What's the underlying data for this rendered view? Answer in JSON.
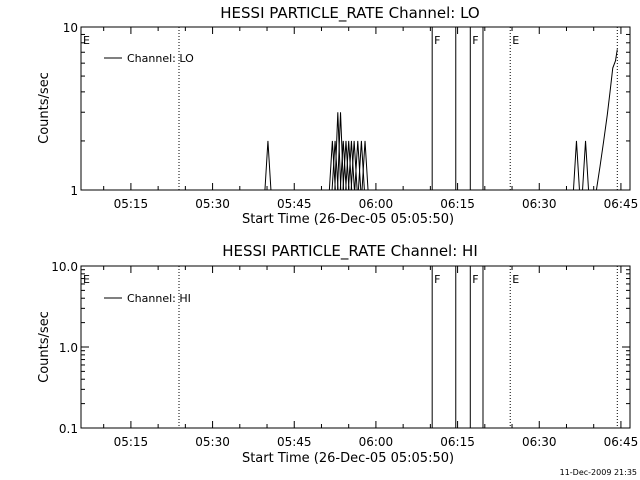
{
  "footer_timestamp": "11-Dec-2009 21:35",
  "chart_data": [
    {
      "type": "line",
      "title": "HESSI PARTICLE_RATE Channel: LO",
      "xlabel": "Start Time (26-Dec-05 05:05:50)",
      "ylabel": "Counts/sec",
      "yscale": "log",
      "xlim": [
        "05:05:50",
        "06:46:40"
      ],
      "ylim": [
        1,
        10
      ],
      "x_ticks": [
        "05:15",
        "05:30",
        "05:45",
        "06:00",
        "06:15",
        "06:30",
        "06:45"
      ],
      "y_ticks": [
        "1",
        "10"
      ],
      "legend": "top-left",
      "series": [
        {
          "name": "Channel: LO",
          "points": [
            [
              "06:40:30",
              1
            ],
            [
              "06:41:10",
              1.4
            ],
            [
              "06:41:50",
              2.0
            ],
            [
              "06:42:30",
              2.9
            ],
            [
              "06:43:00",
              4.0
            ],
            [
              "06:43:30",
              5.6
            ],
            [
              "06:44:00",
              6.2
            ],
            [
              "06:44:20",
              7.3
            ]
          ],
          "spikes": [
            {
              "x": "05:40:10",
              "y": 2
            },
            {
              "x": "05:52:00",
              "y": 2
            },
            {
              "x": "05:52:30",
              "y": 2
            },
            {
              "x": "05:53:00",
              "y": 3
            },
            {
              "x": "05:53:30",
              "y": 3
            },
            {
              "x": "05:54:00",
              "y": 2
            },
            {
              "x": "05:54:30",
              "y": 2
            },
            {
              "x": "05:55:00",
              "y": 2
            },
            {
              "x": "05:55:30",
              "y": 2
            },
            {
              "x": "05:56:00",
              "y": 2
            },
            {
              "x": "05:56:40",
              "y": 2
            },
            {
              "x": "05:57:20",
              "y": 2
            },
            {
              "x": "05:58:00",
              "y": 2
            },
            {
              "x": "06:36:50",
              "y": 2
            },
            {
              "x": "06:38:30",
              "y": 2
            }
          ]
        }
      ],
      "markers": [
        {
          "x": "05:05:50",
          "label": "E",
          "style": "dotted"
        },
        {
          "x": "05:23:50",
          "label": "",
          "style": "dotted"
        },
        {
          "x": "06:10:20",
          "label": "F",
          "style": "solid"
        },
        {
          "x": "06:14:40",
          "label": "",
          "style": "solid"
        },
        {
          "x": "06:17:20",
          "label": "F",
          "style": "solid"
        },
        {
          "x": "06:19:40",
          "label": "",
          "style": "solid"
        },
        {
          "x": "06:24:40",
          "label": "E",
          "style": "dotted"
        },
        {
          "x": "06:44:20",
          "label": "",
          "style": "dotted"
        }
      ]
    },
    {
      "type": "line",
      "title": "HESSI PARTICLE_RATE Channel: HI",
      "xlabel": "Start Time (26-Dec-05 05:05:50)",
      "ylabel": "Counts/sec",
      "yscale": "log",
      "xlim": [
        "05:05:50",
        "06:46:40"
      ],
      "ylim": [
        0.1,
        10
      ],
      "x_ticks": [
        "05:15",
        "05:30",
        "05:45",
        "06:00",
        "06:15",
        "06:30",
        "06:45"
      ],
      "y_ticks": [
        "0.1",
        "1.0",
        "10.0"
      ],
      "legend": "top-left",
      "series": [
        {
          "name": "Channel: HI",
          "points": [],
          "spikes": []
        }
      ],
      "markers": [
        {
          "x": "05:05:50",
          "label": "E",
          "style": "dotted"
        },
        {
          "x": "05:23:50",
          "label": "",
          "style": "dotted"
        },
        {
          "x": "06:10:20",
          "label": "F",
          "style": "solid"
        },
        {
          "x": "06:14:40",
          "label": "",
          "style": "solid"
        },
        {
          "x": "06:17:20",
          "label": "F",
          "style": "solid"
        },
        {
          "x": "06:19:40",
          "label": "",
          "style": "solid"
        },
        {
          "x": "06:24:40",
          "label": "E",
          "style": "dotted"
        },
        {
          "x": "06:44:20",
          "label": "",
          "style": "dotted"
        }
      ]
    }
  ]
}
